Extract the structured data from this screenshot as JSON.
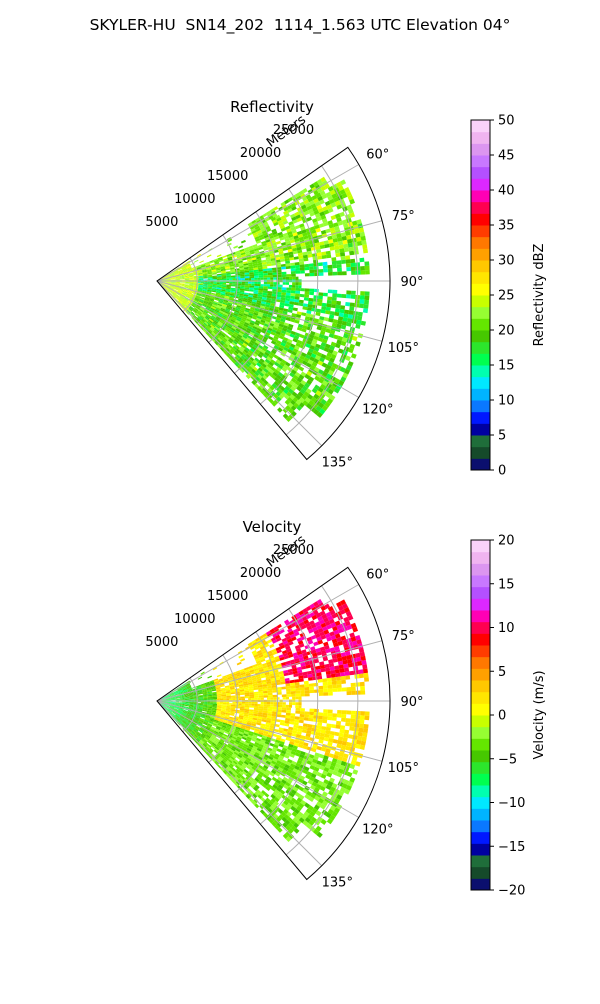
{
  "suptitle": "SKYLER-HU  SN14_202  1114_1.563 UTC Elevation 04°",
  "chart_data": [
    {
      "type": "polar-sector",
      "title": "Reflectivity",
      "radial_axis_label": "Meters",
      "radial_ticks": [
        5000,
        10000,
        15000,
        20000,
        25000
      ],
      "radial_tick_labels": [
        "5000",
        "10000",
        "15000",
        "20000",
        "25000"
      ],
      "r_max": 29000,
      "theta_ticks": [
        60,
        75,
        90,
        105,
        120,
        135
      ],
      "theta_tick_labels": [
        "60°",
        "75°",
        "90°",
        "105°",
        "120°",
        "135°"
      ],
      "theta_range": [
        55,
        140
      ],
      "theta_zero": "north",
      "theta_direction": "clockwise",
      "grid": true,
      "colorbar": {
        "label": "Reflectivity dBZ",
        "range": [
          0,
          50
        ],
        "ticks": [
          0,
          5,
          10,
          15,
          20,
          25,
          30,
          35,
          40,
          45,
          50
        ],
        "tick_labels": [
          "0",
          "5",
          "10",
          "15",
          "20",
          "25",
          "30",
          "35",
          "40",
          "45",
          "50"
        ]
      },
      "field_summary": {
        "typical_range": [
          12,
          26
        ],
        "near_range_values": 24,
        "upper_sector_values": 22,
        "lower_sector_values": 20,
        "mid_sector_values": 16
      }
    },
    {
      "type": "polar-sector",
      "title": "Velocity",
      "radial_axis_label": "Meters",
      "radial_ticks": [
        5000,
        10000,
        15000,
        20000,
        25000
      ],
      "radial_tick_labels": [
        "5000",
        "10000",
        "15000",
        "20000",
        "25000"
      ],
      "r_max": 29000,
      "theta_ticks": [
        60,
        75,
        90,
        105,
        120,
        135
      ],
      "theta_tick_labels": [
        "60°",
        "75°",
        "90°",
        "105°",
        "120°",
        "135°"
      ],
      "theta_range": [
        55,
        140
      ],
      "theta_zero": "north",
      "theta_direction": "clockwise",
      "grid": true,
      "colorbar": {
        "label": "Velocity (m/s)",
        "range": [
          -20,
          20
        ],
        "ticks": [
          -20,
          -15,
          -10,
          -5,
          0,
          5,
          10,
          15,
          20
        ],
        "tick_labels": [
          "−20",
          "−15",
          "−10",
          "−5",
          "0",
          "5",
          "10",
          "15",
          "20"
        ]
      },
      "field_summary": {
        "typical_range": [
          -9,
          11
        ],
        "near_range_values": -8,
        "far_upper_values": 10,
        "mid_range_values": 2,
        "lower_sector_values": -3
      }
    }
  ],
  "colors": {
    "reflectivity_scale": [
      "#0b0f6e",
      "#154a2a",
      "#1f6e3a",
      "#0000a0",
      "#0018ff",
      "#0a78ff",
      "#00b4ff",
      "#00e8ff",
      "#00ffb0",
      "#00ff50",
      "#2ce62c",
      "#46c800",
      "#64e600",
      "#96ff32",
      "#c8ff00",
      "#ffff00",
      "#ffe600",
      "#ffc800",
      "#ffa000",
      "#ff7800",
      "#ff3c00",
      "#ff0000",
      "#ff0050",
      "#ff00b4",
      "#dc28ff",
      "#b450ff",
      "#c878ff",
      "#dc96f0",
      "#f0b4f0",
      "#fad2fa"
    ],
    "velocity_scale": [
      "#0b0f6e",
      "#154a2a",
      "#1f6e3a",
      "#0000a0",
      "#0018ff",
      "#0a78ff",
      "#00b4ff",
      "#00e8ff",
      "#00ffb0",
      "#00ff50",
      "#2ce62c",
      "#46c800",
      "#64e600",
      "#96ff32",
      "#c8ff00",
      "#ffff00",
      "#ffe600",
      "#ffc800",
      "#ffa000",
      "#ff7800",
      "#ff3c00",
      "#ff0000",
      "#ff0050",
      "#ff00b4",
      "#dc28ff",
      "#b450ff",
      "#c878ff",
      "#dc96f0",
      "#f0b4f0",
      "#fad2fa"
    ]
  }
}
